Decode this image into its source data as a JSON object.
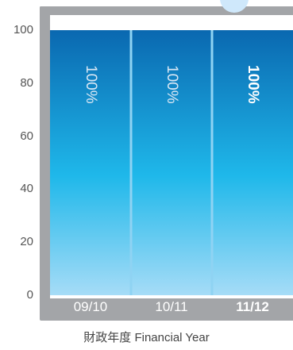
{
  "chart_data": {
    "type": "bar",
    "title": "",
    "xlabel": "財政年度 Financial Year",
    "ylabel": "",
    "ylim": [
      0,
      100
    ],
    "yticks": [
      "100",
      "80",
      "60",
      "40",
      "20",
      "0"
    ],
    "categories": [
      "09/10",
      "10/11",
      "11/12"
    ],
    "values": [
      100,
      100,
      100
    ],
    "data_labels": [
      "100%",
      "100%",
      "100%"
    ],
    "highlight_category": "11/12",
    "grid": false,
    "legend": "none"
  },
  "colors": {
    "frame": "#a3a5a8",
    "bar_top": "#0a68b0",
    "bar_mid": "#1fb8ea",
    "bar_bottom": "#a6dcf7",
    "divider": "#8fd3f3",
    "bubble": "#cfe8fb"
  }
}
